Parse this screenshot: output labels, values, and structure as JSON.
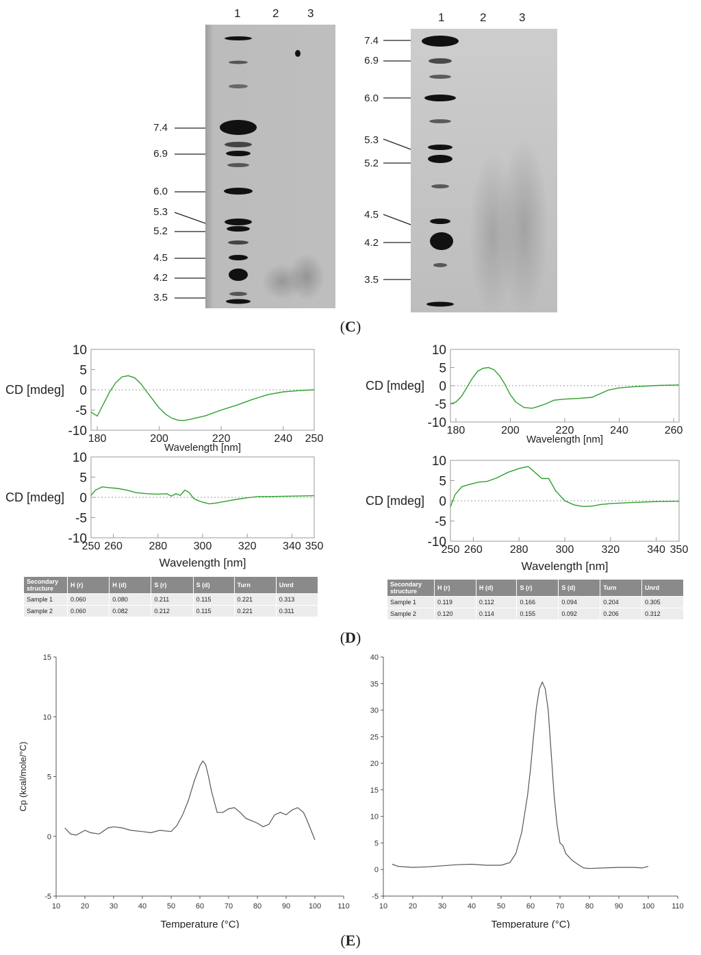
{
  "panel_c": {
    "label": "C",
    "gels": [
      {
        "lane_labels": [
          "1",
          "2",
          "3"
        ],
        "markers": [
          "7.4",
          "6.9",
          "6.0",
          "5.3",
          "5.2",
          "4.5",
          "4.2",
          "3.5"
        ]
      },
      {
        "lane_labels": [
          "1",
          "2",
          "3"
        ],
        "markers": [
          "7.4",
          "6.9",
          "6.0",
          "5.3",
          "5.2",
          "4.5",
          "4.2",
          "3.5"
        ]
      }
    ]
  },
  "panel_d": {
    "label": "D",
    "table_left": {
      "headers": [
        "Secondary structure",
        "H (r)",
        "H (d)",
        "S (r)",
        "S (d)",
        "Turn",
        "Unrd"
      ],
      "rows": [
        [
          "Sample 1",
          "0.060",
          "0.080",
          "0.211",
          "0.115",
          "0.221",
          "0.313"
        ],
        [
          "Sample 2",
          "0.060",
          "0.082",
          "0.212",
          "0.115",
          "0.221",
          "0.311"
        ]
      ]
    },
    "table_right": {
      "headers": [
        "Secondary structure",
        "H (r)",
        "H (d)",
        "S (r)",
        "S (d)",
        "Turn",
        "Unrd"
      ],
      "rows": [
        [
          "Sample 1",
          "0.119",
          "0.112",
          "0.166",
          "0.094",
          "0.204",
          "0.305"
        ],
        [
          "Sample 2",
          "0.120",
          "0.114",
          "0.155",
          "0.092",
          "0.206",
          "0.312"
        ]
      ]
    }
  },
  "panel_e": {
    "label": "E"
  },
  "chart_data": [
    {
      "type": "line",
      "ylabel": "CD [mdeg]",
      "xlabel": "Wavelength [nm]",
      "xlim": [
        178,
        250
      ],
      "ylim": [
        -10,
        10
      ],
      "xticks": [
        "180",
        "200",
        "220",
        "240",
        "250"
      ],
      "xtick_values": [
        180,
        200,
        220,
        240,
        250
      ],
      "yticks": [
        "10",
        "5",
        "0",
        "-5",
        "-10"
      ],
      "color": "#2ca02c",
      "series": [
        {
          "x": [
            178,
            180,
            182,
            184,
            186,
            188,
            190,
            192,
            194,
            196,
            198,
            200,
            202,
            204,
            206,
            208,
            210,
            215,
            220,
            225,
            230,
            235,
            240,
            245,
            250
          ],
          "y": [
            -5.5,
            -6.5,
            -3.5,
            -0.5,
            1.8,
            3.2,
            3.5,
            3.0,
            1.6,
            -0.5,
            -2.5,
            -4.5,
            -6.0,
            -7.0,
            -7.5,
            -7.6,
            -7.3,
            -6.4,
            -5.0,
            -3.8,
            -2.4,
            -1.2,
            -0.5,
            -0.2,
            0.0
          ]
        }
      ]
    },
    {
      "type": "line",
      "ylabel": "CD [mdeg]",
      "xlabel": "Wavelength [nm]",
      "xlim": [
        250,
        350
      ],
      "ylim": [
        -10,
        10
      ],
      "xticks": [
        "250",
        "260",
        "280",
        "300",
        "320",
        "340",
        "350"
      ],
      "xtick_values": [
        250,
        260,
        280,
        300,
        320,
        340,
        350
      ],
      "yticks": [
        "10",
        "5",
        "0",
        "-5",
        "-10"
      ],
      "color": "#2ca02c",
      "series": [
        {
          "x": [
            250,
            252,
            255,
            258,
            262,
            266,
            270,
            275,
            280,
            284,
            286,
            288,
            290,
            292,
            294,
            296,
            298,
            300,
            303,
            306,
            310,
            315,
            320,
            325,
            330,
            340,
            350
          ],
          "y": [
            0.5,
            1.8,
            2.6,
            2.4,
            2.2,
            1.8,
            1.2,
            0.9,
            0.8,
            0.9,
            0.3,
            0.9,
            0.5,
            1.8,
            1.2,
            -0.3,
            -0.8,
            -1.2,
            -1.6,
            -1.4,
            -1.0,
            -0.5,
            -0.1,
            0.2,
            0.2,
            0.3,
            0.4
          ]
        }
      ]
    },
    {
      "type": "line",
      "ylabel": "CD [mdeg]",
      "xlabel": "Wavelength [nm]",
      "xlim": [
        178,
        262
      ],
      "ylim": [
        -10,
        10
      ],
      "xticks": [
        "180",
        "200",
        "220",
        "240",
        "260"
      ],
      "xtick_values": [
        180,
        200,
        220,
        240,
        260
      ],
      "yticks": [
        "10",
        "5",
        "0",
        "-5",
        "-10"
      ],
      "color": "#2ca02c",
      "series": [
        {
          "x": [
            178,
            180,
            182,
            184,
            186,
            188,
            190,
            192,
            194,
            196,
            198,
            200,
            202,
            205,
            208,
            210,
            213,
            216,
            220,
            225,
            230,
            233,
            236,
            240,
            245,
            250,
            255,
            262
          ],
          "y": [
            -5.0,
            -4.5,
            -3.0,
            -0.5,
            2.0,
            4.0,
            4.8,
            5.0,
            4.4,
            2.8,
            0.4,
            -2.5,
            -4.5,
            -6.0,
            -6.2,
            -5.8,
            -5.0,
            -4.0,
            -3.7,
            -3.5,
            -3.2,
            -2.2,
            -1.2,
            -0.6,
            -0.3,
            -0.1,
            0.1,
            0.2
          ]
        }
      ]
    },
    {
      "type": "line",
      "ylabel": "CD [mdeg]",
      "xlabel": "Wavelength [nm]",
      "xlim": [
        250,
        350
      ],
      "ylim": [
        -10,
        10
      ],
      "xticks": [
        "250",
        "260",
        "280",
        "300",
        "320",
        "340",
        "350"
      ],
      "xtick_values": [
        250,
        260,
        280,
        300,
        320,
        340,
        350
      ],
      "yticks": [
        "10",
        "5",
        "0",
        "-5",
        "-10"
      ],
      "color": "#2ca02c",
      "series": [
        {
          "x": [
            250,
            252,
            255,
            258,
            262,
            266,
            270,
            275,
            280,
            284,
            287,
            290,
            293,
            296,
            300,
            304,
            308,
            312,
            316,
            320,
            330,
            340,
            350
          ],
          "y": [
            -1.5,
            1.5,
            3.5,
            4.0,
            4.6,
            4.8,
            5.6,
            7.0,
            8.0,
            8.5,
            7.0,
            5.5,
            5.5,
            2.5,
            0.0,
            -1.0,
            -1.4,
            -1.3,
            -0.9,
            -0.7,
            -0.4,
            -0.2,
            -0.1
          ]
        }
      ]
    },
    {
      "type": "line",
      "ylabel": "Cp (kcal/mole/°C)",
      "xlabel": "Temperature (°C)",
      "xlim": [
        10,
        110
      ],
      "ylim": [
        -5,
        15
      ],
      "xticks": [
        "10",
        "20",
        "30",
        "40",
        "50",
        "60",
        "70",
        "80",
        "90",
        "100",
        "110"
      ],
      "xtick_values": [
        10,
        20,
        30,
        40,
        50,
        60,
        70,
        80,
        90,
        100,
        110
      ],
      "yticks": [
        "15",
        "10",
        "5",
        "0",
        "-5"
      ],
      "ytick_values": [
        15,
        10,
        5,
        0,
        -5
      ],
      "color": "#555555",
      "series": [
        {
          "x": [
            13,
            15,
            17,
            20,
            22,
            25,
            28,
            30,
            33,
            36,
            40,
            43,
            46,
            50,
            52,
            54,
            56,
            58,
            60,
            61,
            62,
            63,
            64,
            66,
            68,
            70,
            72,
            74,
            76,
            78,
            80,
            82,
            84,
            86,
            88,
            90,
            92,
            94,
            96,
            97,
            98,
            99,
            100
          ],
          "y": [
            0.7,
            0.2,
            0.1,
            0.5,
            0.3,
            0.2,
            0.7,
            0.8,
            0.7,
            0.5,
            0.4,
            0.3,
            0.5,
            0.4,
            0.9,
            1.8,
            3.0,
            4.6,
            5.9,
            6.3,
            6.0,
            5.0,
            3.8,
            2.0,
            2.0,
            2.3,
            2.4,
            2.0,
            1.5,
            1.3,
            1.1,
            0.8,
            1.0,
            1.8,
            2.0,
            1.8,
            2.2,
            2.4,
            2.0,
            1.5,
            0.9,
            0.3,
            -0.3
          ]
        }
      ]
    },
    {
      "type": "line",
      "ylabel": "",
      "xlabel": "Temperature (°C)",
      "xlim": [
        10,
        110
      ],
      "ylim": [
        -5,
        40
      ],
      "xticks": [
        "10",
        "20",
        "30",
        "40",
        "50",
        "60",
        "70",
        "80",
        "90",
        "100",
        "110"
      ],
      "xtick_values": [
        10,
        20,
        30,
        40,
        50,
        60,
        70,
        80,
        90,
        100,
        110
      ],
      "yticks": [
        "40",
        "35",
        "30",
        "25",
        "20",
        "15",
        "10",
        "5",
        "0",
        "-5"
      ],
      "ytick_values": [
        40,
        35,
        30,
        25,
        20,
        15,
        10,
        5,
        0,
        -5
      ],
      "color": "#555555",
      "series": [
        {
          "x": [
            13,
            15,
            20,
            25,
            30,
            35,
            40,
            45,
            50,
            53,
            55,
            57,
            59,
            60,
            61,
            62,
            63,
            64,
            65,
            66,
            67,
            68,
            69,
            70,
            71,
            72,
            74,
            76,
            78,
            80,
            85,
            90,
            95,
            98,
            100
          ],
          "y": [
            1.0,
            0.6,
            0.4,
            0.5,
            0.7,
            0.9,
            1.0,
            0.8,
            0.8,
            1.3,
            3.0,
            7.0,
            14.0,
            19.0,
            25.0,
            30.5,
            34.0,
            35.3,
            34.0,
            30.0,
            22.0,
            14.0,
            8.5,
            5.0,
            4.5,
            3.0,
            1.8,
            1.0,
            0.3,
            0.2,
            0.3,
            0.4,
            0.4,
            0.3,
            0.6
          ]
        }
      ]
    }
  ]
}
